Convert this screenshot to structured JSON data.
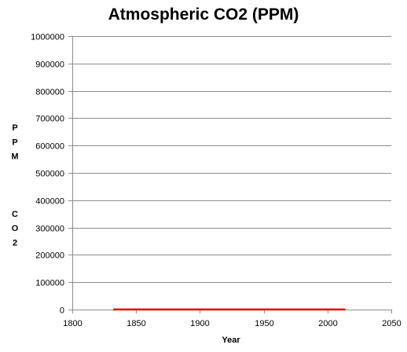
{
  "chart_data": {
    "type": "line",
    "title": "Atmospheric CO2 (PPM)",
    "xlabel": "Year",
    "ylabel": "PPM   CO2",
    "xlim": [
      1800,
      2050
    ],
    "ylim": [
      0,
      1000000
    ],
    "x_ticks": [
      1800,
      1850,
      1900,
      1950,
      2000,
      2050
    ],
    "y_ticks": [
      0,
      100000,
      200000,
      300000,
      400000,
      500000,
      600000,
      700000,
      800000,
      900000,
      1000000
    ],
    "grid": "horizontal",
    "legend": "none",
    "series": [
      {
        "color": "#e00000",
        "x": [
          1832,
          1850,
          1900,
          1950,
          2000,
          2014
        ],
        "y": [
          284,
          285,
          296,
          311,
          369,
          397
        ]
      }
    ]
  }
}
